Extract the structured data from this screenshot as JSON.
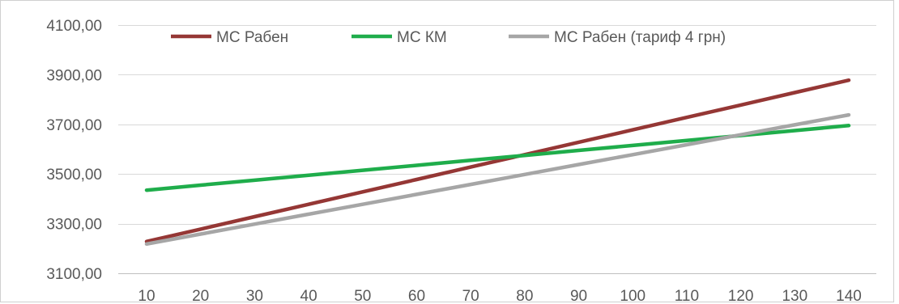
{
  "chart_data": {
    "type": "line",
    "title": "",
    "xlabel": "",
    "ylabel": "",
    "x": [
      10,
      20,
      30,
      40,
      50,
      60,
      70,
      80,
      90,
      100,
      110,
      120,
      130,
      140
    ],
    "x_tick_labels": [
      "10",
      "20",
      "30",
      "40",
      "50",
      "60",
      "70",
      "80",
      "90",
      "100",
      "110",
      "120",
      "130",
      "140"
    ],
    "y_tick_values": [
      3100,
      3300,
      3500,
      3700,
      3900,
      4100
    ],
    "y_tick_labels": [
      "3100,00",
      "3300,00",
      "3500,00",
      "3700,00",
      "3900,00",
      "4100,00"
    ],
    "ylim": [
      3100,
      4100
    ],
    "grid": "horizontal",
    "legend_position": "top",
    "series": [
      {
        "name": "МС Рабен",
        "color": "#953735",
        "values": [
          3228,
          3278,
          3328,
          3378,
          3428,
          3478,
          3528,
          3578,
          3628,
          3678,
          3728,
          3778,
          3828,
          3878
        ]
      },
      {
        "name": "МС КМ",
        "color": "#1fad4b",
        "values": [
          3435,
          3455,
          3475,
          3495,
          3515,
          3535,
          3555,
          3575,
          3595,
          3615,
          3635,
          3655,
          3675,
          3695
        ]
      },
      {
        "name": "МС Рабен (тариф 4 грн)",
        "color": "#a6a6a6",
        "values": [
          3218,
          3258,
          3298,
          3338,
          3378,
          3418,
          3458,
          3498,
          3538,
          3578,
          3618,
          3658,
          3698,
          3738
        ]
      }
    ]
  }
}
